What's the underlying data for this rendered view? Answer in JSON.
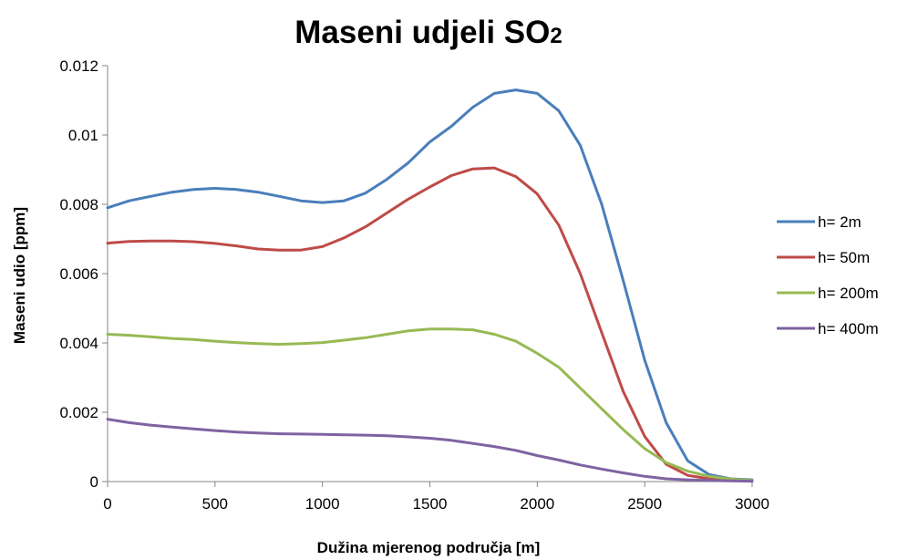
{
  "chart_data": {
    "type": "line",
    "title": "Maseni udjeli SO",
    "title_subscript": "2",
    "xlabel": "Dužina mjerenog područja [m]",
    "ylabel": "Maseni udio [ppm]",
    "xlim": [
      0,
      3000
    ],
    "ylim": [
      0,
      0.012
    ],
    "x_ticks": [
      "0",
      "500",
      "1000",
      "1500",
      "2000",
      "2500",
      "3000"
    ],
    "y_ticks": [
      "0",
      "0.002",
      "0.004",
      "0.006",
      "0.008",
      "0.01",
      "0.012"
    ],
    "grid": false,
    "legend_position": "right",
    "x": [
      0,
      100,
      200,
      300,
      400,
      500,
      600,
      700,
      800,
      900,
      1000,
      1100,
      1200,
      1300,
      1400,
      1500,
      1600,
      1700,
      1800,
      1900,
      2000,
      2100,
      2200,
      2300,
      2400,
      2500,
      2600,
      2700,
      2800,
      2900,
      3000
    ],
    "series": [
      {
        "name": "h= 2m",
        "color": "#4A7EBB",
        "values": [
          0.0079,
          0.0081,
          0.00823,
          0.00835,
          0.00843,
          0.00846,
          0.00843,
          0.00835,
          0.00823,
          0.0081,
          0.00805,
          0.0081,
          0.00832,
          0.00872,
          0.0092,
          0.0098,
          0.01025,
          0.0108,
          0.0112,
          0.0113,
          0.0112,
          0.0107,
          0.0097,
          0.008,
          0.0058,
          0.0035,
          0.0017,
          0.0006,
          0.0002,
          8e-05,
          5e-05
        ]
      },
      {
        "name": "h= 50m",
        "color": "#BE4B48",
        "values": [
          0.00688,
          0.00693,
          0.00694,
          0.00694,
          0.00692,
          0.00687,
          0.0068,
          0.00671,
          0.00668,
          0.00668,
          0.00678,
          0.00703,
          0.00735,
          0.00775,
          0.00815,
          0.0085,
          0.00883,
          0.00902,
          0.00905,
          0.0088,
          0.0083,
          0.0074,
          0.006,
          0.0043,
          0.0026,
          0.0013,
          0.0005,
          0.00018,
          8e-05,
          4e-05,
          2e-05
        ]
      },
      {
        "name": "h= 200m",
        "color": "#98B954",
        "values": [
          0.00425,
          0.00422,
          0.00418,
          0.00413,
          0.0041,
          0.00405,
          0.00401,
          0.00398,
          0.00396,
          0.00398,
          0.00401,
          0.00408,
          0.00415,
          0.00425,
          0.00435,
          0.0044,
          0.0044,
          0.00438,
          0.00425,
          0.00405,
          0.0037,
          0.0033,
          0.0027,
          0.0021,
          0.0015,
          0.00095,
          0.00055,
          0.0003,
          0.00015,
          7e-05,
          3e-05
        ]
      },
      {
        "name": "h= 400m",
        "color": "#7E63A1",
        "values": [
          0.0018,
          0.0017,
          0.00163,
          0.00157,
          0.00152,
          0.00147,
          0.00143,
          0.0014,
          0.00138,
          0.00137,
          0.00136,
          0.00135,
          0.00134,
          0.00132,
          0.00129,
          0.00125,
          0.00119,
          0.0011,
          0.00101,
          0.0009,
          0.00075,
          0.00062,
          0.00048,
          0.00036,
          0.00025,
          0.00015,
          8e-05,
          5e-05,
          3e-05,
          2e-05,
          1e-05
        ]
      }
    ]
  }
}
